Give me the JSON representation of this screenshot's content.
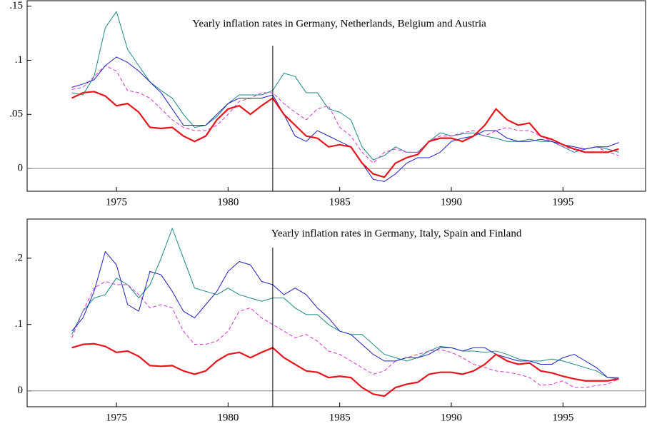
{
  "chart_data": [
    {
      "type": "line",
      "title": "Yearly inflation rates in Germany, Netherlands, Belgium and Austria",
      "x": [
        1973,
        1973.5,
        1974,
        1974.5,
        1975,
        1975.5,
        1976,
        1976.5,
        1977,
        1977.5,
        1978,
        1978.5,
        1979,
        1979.5,
        1980,
        1980.5,
        1981,
        1981.5,
        1982,
        1982.5,
        1983,
        1983.5,
        1984,
        1984.5,
        1985,
        1985.5,
        1986,
        1986.5,
        1987,
        1987.5,
        1988,
        1988.5,
        1989,
        1989.5,
        1990,
        1990.5,
        1991,
        1991.5,
        1992,
        1992.5,
        1993,
        1993.5,
        1994,
        1994.5,
        1995,
        1995.5,
        1996,
        1996.5,
        1997,
        1997.5
      ],
      "series": [
        {
          "color": "#1a8a86",
          "dash": "solid",
          "width": 1,
          "values": [
            0.07,
            0.068,
            0.085,
            0.13,
            0.145,
            0.11,
            0.095,
            0.08,
            0.072,
            0.065,
            0.05,
            0.038,
            0.04,
            0.048,
            0.06,
            0.068,
            0.068,
            0.068,
            0.072,
            0.088,
            0.085,
            0.07,
            0.07,
            0.055,
            0.052,
            0.045,
            0.02,
            0.008,
            0.012,
            0.02,
            0.015,
            0.015,
            0.025,
            0.033,
            0.03,
            0.032,
            0.033,
            0.03,
            0.028,
            0.025,
            0.025,
            0.027,
            0.025,
            0.025,
            0.02,
            0.015,
            0.018,
            0.02,
            0.018,
            0.015
          ]
        },
        {
          "color": "#d633d6",
          "dash": "dashed",
          "width": 1,
          "values": [
            0.073,
            0.075,
            0.085,
            0.095,
            0.09,
            0.072,
            0.07,
            0.065,
            0.055,
            0.045,
            0.038,
            0.035,
            0.035,
            0.04,
            0.05,
            0.062,
            0.065,
            0.07,
            0.07,
            0.06,
            0.052,
            0.045,
            0.055,
            0.058,
            0.038,
            0.03,
            0.015,
            0.005,
            0.015,
            0.018,
            0.015,
            0.015,
            0.025,
            0.03,
            0.03,
            0.033,
            0.035,
            0.03,
            0.035,
            0.038,
            0.035,
            0.035,
            0.03,
            0.025,
            0.02,
            0.018,
            0.018,
            0.02,
            0.015,
            0.012
          ]
        },
        {
          "color": "#1f1fbf",
          "dash": "solid",
          "width": 1,
          "values": [
            0.075,
            0.078,
            0.082,
            0.095,
            0.103,
            0.098,
            0.09,
            0.08,
            0.07,
            0.055,
            0.04,
            0.04,
            0.04,
            0.05,
            0.06,
            0.065,
            0.065,
            0.065,
            0.068,
            0.05,
            0.03,
            0.025,
            0.035,
            0.03,
            0.025,
            0.02,
            0.005,
            -0.01,
            -0.012,
            -0.005,
            0.005,
            0.01,
            0.01,
            0.015,
            0.025,
            0.028,
            0.03,
            0.035,
            0.035,
            0.028,
            0.025,
            0.025,
            0.027,
            0.025,
            0.022,
            0.02,
            0.018,
            0.02,
            0.02,
            0.024
          ]
        },
        {
          "color": "#e8141c",
          "dash": "solid",
          "width": 2.2,
          "values": [
            0.065,
            0.07,
            0.071,
            0.067,
            0.058,
            0.06,
            0.052,
            0.038,
            0.037,
            0.038,
            0.03,
            0.025,
            0.03,
            0.045,
            0.055,
            0.058,
            0.05,
            0.058,
            0.065,
            0.05,
            0.04,
            0.03,
            0.028,
            0.02,
            0.022,
            0.02,
            0.005,
            -0.005,
            -0.008,
            0.005,
            0.01,
            0.013,
            0.025,
            0.028,
            0.028,
            0.025,
            0.03,
            0.04,
            0.055,
            0.045,
            0.04,
            0.042,
            0.03,
            0.027,
            0.022,
            0.018,
            0.015,
            0.015,
            0.015,
            0.018
          ]
        }
      ],
      "xlim": [
        1971,
        1998.7
      ],
      "ylim": [
        -0.021,
        0.155
      ],
      "xticks": [
        1975,
        1980,
        1985,
        1990,
        1995
      ],
      "yticks": [
        0,
        {
          "value": 0.05,
          "label": ".05"
        },
        {
          "value": 0.1,
          "label": ".1"
        },
        {
          "value": 0.15,
          "label": ".15"
        }
      ],
      "hline": 0,
      "vline": 1982
    },
    {
      "type": "line",
      "title": "Yearly inflation rates in Germany, Italy, Spain and Finland",
      "x": [
        1973,
        1973.5,
        1974,
        1974.5,
        1975,
        1975.5,
        1976,
        1976.5,
        1977,
        1977.5,
        1978,
        1978.5,
        1979,
        1979.5,
        1980,
        1980.5,
        1981,
        1981.5,
        1982,
        1982.5,
        1983,
        1983.5,
        1984,
        1984.5,
        1985,
        1985.5,
        1986,
        1986.5,
        1987,
        1987.5,
        1988,
        1988.5,
        1989,
        1989.5,
        1990,
        1990.5,
        1991,
        1991.5,
        1992,
        1992.5,
        1993,
        1993.5,
        1994,
        1994.5,
        1995,
        1995.5,
        1996,
        1996.5,
        1997,
        1997.5
      ],
      "series": [
        {
          "color": "#1a8a86",
          "dash": "solid",
          "width": 1,
          "values": [
            0.085,
            0.12,
            0.14,
            0.145,
            0.17,
            0.16,
            0.14,
            0.16,
            0.2,
            0.245,
            0.2,
            0.155,
            0.15,
            0.145,
            0.155,
            0.145,
            0.14,
            0.135,
            0.14,
            0.14,
            0.125,
            0.115,
            0.115,
            0.1,
            0.09,
            0.085,
            0.085,
            0.07,
            0.055,
            0.05,
            0.045,
            0.05,
            0.06,
            0.067,
            0.065,
            0.06,
            0.06,
            0.058,
            0.06,
            0.055,
            0.048,
            0.045,
            0.045,
            0.048,
            0.045,
            0.04,
            0.035,
            0.03,
            0.02,
            0.018
          ]
        },
        {
          "color": "#d633d6",
          "dash": "dashed",
          "width": 1,
          "values": [
            0.08,
            0.12,
            0.155,
            0.165,
            0.16,
            0.16,
            0.145,
            0.125,
            0.13,
            0.125,
            0.09,
            0.07,
            0.07,
            0.075,
            0.09,
            0.12,
            0.125,
            0.11,
            0.1,
            0.09,
            0.08,
            0.085,
            0.075,
            0.06,
            0.055,
            0.045,
            0.035,
            0.025,
            0.03,
            0.045,
            0.05,
            0.055,
            0.06,
            0.062,
            0.058,
            0.05,
            0.04,
            0.035,
            0.03,
            0.028,
            0.025,
            0.02,
            0.008,
            0.01,
            0.015,
            0.005,
            0.005,
            0.008,
            0.01,
            0.018
          ]
        },
        {
          "color": "#1f1fbf",
          "dash": "solid",
          "width": 1,
          "values": [
            0.09,
            0.11,
            0.15,
            0.21,
            0.19,
            0.13,
            0.12,
            0.18,
            0.175,
            0.15,
            0.12,
            0.11,
            0.13,
            0.15,
            0.18,
            0.195,
            0.19,
            0.165,
            0.16,
            0.145,
            0.155,
            0.145,
            0.125,
            0.11,
            0.09,
            0.085,
            0.07,
            0.055,
            0.045,
            0.045,
            0.05,
            0.05,
            0.055,
            0.065,
            0.065,
            0.06,
            0.065,
            0.065,
            0.055,
            0.05,
            0.045,
            0.045,
            0.04,
            0.04,
            0.05,
            0.055,
            0.045,
            0.035,
            0.02,
            0.02
          ]
        },
        {
          "color": "#e8141c",
          "dash": "solid",
          "width": 2.2,
          "values": [
            0.065,
            0.07,
            0.071,
            0.067,
            0.058,
            0.06,
            0.052,
            0.038,
            0.037,
            0.038,
            0.03,
            0.025,
            0.03,
            0.045,
            0.055,
            0.058,
            0.05,
            0.058,
            0.065,
            0.05,
            0.04,
            0.03,
            0.028,
            0.02,
            0.022,
            0.02,
            0.005,
            -0.005,
            -0.008,
            0.005,
            0.01,
            0.013,
            0.025,
            0.028,
            0.028,
            0.025,
            0.03,
            0.04,
            0.055,
            0.045,
            0.04,
            0.042,
            0.03,
            0.027,
            0.022,
            0.018,
            0.015,
            0.015,
            0.015,
            0.018
          ]
        }
      ],
      "xlim": [
        1971,
        1998.7
      ],
      "ylim": [
        -0.024,
        0.259
      ],
      "xticks": [
        1975,
        1980,
        1985,
        1990,
        1995
      ],
      "yticks": [
        0,
        {
          "value": 0.1,
          "label": ".1"
        },
        {
          "value": 0.2,
          "label": ".2"
        }
      ],
      "hline": 0,
      "vline": 1982
    }
  ]
}
